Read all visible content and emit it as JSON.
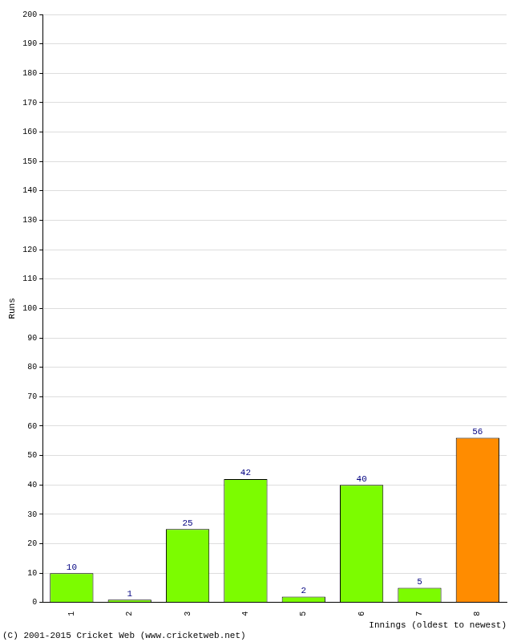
{
  "chart_data": {
    "type": "bar",
    "categories": [
      "1",
      "2",
      "3",
      "4",
      "5",
      "6",
      "7",
      "8"
    ],
    "values": [
      10,
      1,
      25,
      42,
      2,
      40,
      5,
      56
    ],
    "colors": [
      "#7cfc00",
      "#7cfc00",
      "#7cfc00",
      "#7cfc00",
      "#7cfc00",
      "#7cfc00",
      "#7cfc00",
      "#ff8c00"
    ],
    "y_label": "Runs",
    "x_label": "Innings (oldest to newest)",
    "annotations": [
      "(C) 2001-2015 Cricket Web (www.cricketweb.net)"
    ],
    "ylim": [
      0,
      200
    ],
    "yticks": [
      0,
      10,
      20,
      30,
      40,
      50,
      60,
      70,
      80,
      90,
      100,
      110,
      120,
      130,
      140,
      150,
      160,
      170,
      180,
      190,
      200
    ],
    "grid": true,
    "data_labels": true
  }
}
